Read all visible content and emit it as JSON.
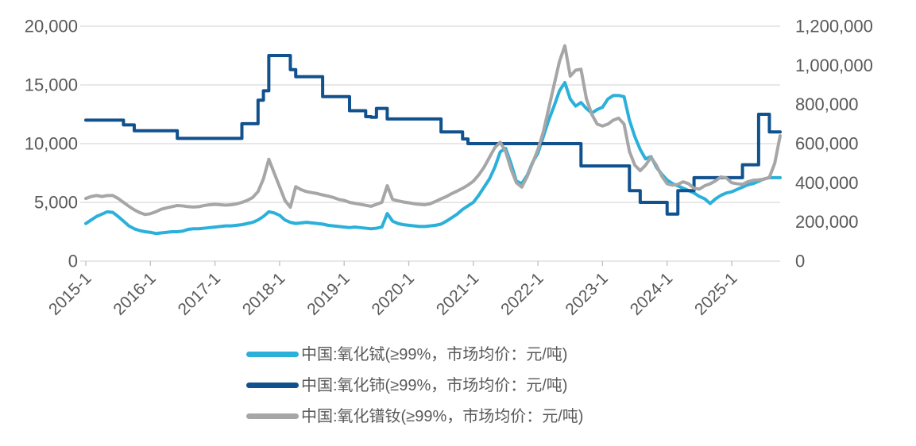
{
  "page": {
    "background": "#FFFFFF"
  },
  "styles": {
    "tick_text_color": "#595959",
    "legend_text_color": "#595959",
    "gridline_color": "#D9D9D9",
    "tick_mark_color": "#BFBFBF"
  },
  "chart_data": {
    "type": "line",
    "title": "",
    "grid": {
      "horizontal": true,
      "vertical": false
    },
    "legend_position": "bottom-left",
    "x_start": "2015-01",
    "x_interval": "month",
    "n_points": 130,
    "x_axis": {
      "rotation_deg": -45,
      "tick_labels": [
        "2015-1",
        "2016-1",
        "2017-1",
        "2018-1",
        "2019-1",
        "2020-1",
        "2021-1",
        "2022-1",
        "2023-1",
        "2024-1",
        "2025-1"
      ],
      "tick_month_indices": [
        0,
        12,
        24,
        36,
        48,
        60,
        72,
        84,
        96,
        108,
        120
      ]
    },
    "left_axis": {
      "min": 0,
      "max": 20000,
      "tick_values": [
        0,
        5000,
        10000,
        15000,
        20000
      ],
      "tick_labels": [
        "0",
        "5,000",
        "10,000",
        "15,000",
        "20,000"
      ]
    },
    "right_axis": {
      "min": 0,
      "max": 1200000,
      "tick_values": [
        0,
        200000,
        400000,
        600000,
        800000,
        1000000,
        1200000
      ],
      "tick_labels": [
        "0",
        "200,000",
        "400,000",
        "600,000",
        "800,000",
        "1,000,000",
        "1,200,000"
      ]
    },
    "series": [
      {
        "name": "中国:氧化铽(≥99%，市场均价：元/吨)",
        "color": "#2BB0DA",
        "axis": "left",
        "interpolation": "linear",
        "values": [
          3200,
          3500,
          3800,
          4000,
          4200,
          4150,
          3800,
          3400,
          3000,
          2750,
          2600,
          2500,
          2450,
          2350,
          2400,
          2450,
          2500,
          2500,
          2550,
          2700,
          2750,
          2750,
          2800,
          2850,
          2900,
          2950,
          3000,
          3000,
          3050,
          3100,
          3200,
          3300,
          3500,
          3800,
          4200,
          4100,
          3900,
          3500,
          3300,
          3200,
          3250,
          3300,
          3250,
          3200,
          3150,
          3050,
          3000,
          2950,
          2900,
          2850,
          2900,
          2850,
          2800,
          2750,
          2800,
          2900,
          4050,
          3400,
          3200,
          3100,
          3050,
          3000,
          2950,
          2950,
          3000,
          3050,
          3150,
          3400,
          3700,
          4000,
          4400,
          4700,
          5000,
          5600,
          6300,
          7000,
          8000,
          9300,
          9600,
          8300,
          6800,
          6600,
          7300,
          8400,
          9200,
          10600,
          12000,
          13200,
          14500,
          15200,
          13800,
          13200,
          13500,
          13000,
          12600,
          12900,
          13100,
          13800,
          14100,
          14100,
          14000,
          12000,
          10600,
          9500,
          8700,
          8900,
          8000,
          7400,
          6900,
          6600,
          6400,
          6200,
          6000,
          5800,
          5500,
          5300,
          4900,
          5300,
          5600,
          5800,
          5900,
          6100,
          6300,
          6500,
          6600,
          6800,
          7000,
          7100,
          7100,
          7100
        ]
      },
      {
        "name": "中国:氧化铈(≥99%，市场均价：元/吨)",
        "color": "#10518E",
        "axis": "left",
        "interpolation": "step",
        "values": [
          12000,
          12000,
          12000,
          12000,
          12000,
          12000,
          12000,
          11600,
          11600,
          11100,
          11100,
          11100,
          11100,
          11100,
          11100,
          11100,
          11100,
          10450,
          10450,
          10450,
          10450,
          10450,
          10450,
          10450,
          10450,
          10450,
          10450,
          10450,
          10450,
          11700,
          11700,
          11700,
          13700,
          14500,
          17500,
          17500,
          17500,
          17500,
          16300,
          15700,
          15700,
          15700,
          15700,
          15700,
          14000,
          14000,
          14000,
          14000,
          14000,
          12800,
          12800,
          12800,
          12300,
          12250,
          13000,
          13000,
          12100,
          12100,
          12100,
          12100,
          12100,
          12100,
          12100,
          12100,
          12100,
          12100,
          11000,
          11000,
          11000,
          11000,
          10400,
          10000,
          10000,
          10000,
          10000,
          10000,
          10000,
          10000,
          10000,
          10000,
          10000,
          10000,
          10000,
          10000,
          10000,
          10000,
          10000,
          10000,
          10000,
          10000,
          10000,
          10000,
          8100,
          8100,
          8100,
          8100,
          8100,
          8100,
          8100,
          8100,
          8100,
          6000,
          6000,
          5000,
          5000,
          5000,
          5000,
          5000,
          4000,
          4000,
          6000,
          6000,
          6000,
          7100,
          7100,
          7100,
          7100,
          7100,
          7100,
          7100,
          7100,
          7100,
          8200,
          8200,
          8200,
          12500,
          12500,
          11000,
          11000,
          11000
        ]
      },
      {
        "name": "中国:氧化镨钕(≥99%，市场均价：元/吨)",
        "color": "#A6A6A6",
        "axis": "right",
        "interpolation": "linear",
        "values": [
          320000,
          330000,
          335000,
          330000,
          335000,
          335000,
          320000,
          300000,
          280000,
          262000,
          248000,
          238000,
          242000,
          252000,
          265000,
          272000,
          278000,
          284000,
          282000,
          278000,
          276000,
          278000,
          284000,
          288000,
          290000,
          288000,
          286000,
          288000,
          292000,
          300000,
          310000,
          325000,
          355000,
          420000,
          520000,
          450000,
          380000,
          310000,
          275000,
          380000,
          365000,
          355000,
          350000,
          345000,
          338000,
          332000,
          325000,
          315000,
          310000,
          300000,
          295000,
          290000,
          285000,
          280000,
          290000,
          300000,
          385000,
          315000,
          308000,
          302000,
          298000,
          293000,
          290000,
          288000,
          293000,
          305000,
          318000,
          330000,
          345000,
          358000,
          372000,
          388000,
          408000,
          440000,
          480000,
          530000,
          580000,
          607000,
          560000,
          470000,
          400000,
          378000,
          432000,
          500000,
          570000,
          660000,
          780000,
          900000,
          1020000,
          1100000,
          945000,
          975000,
          980000,
          830000,
          750000,
          700000,
          690000,
          700000,
          720000,
          730000,
          700000,
          560000,
          490000,
          462000,
          490000,
          530000,
          490000,
          435000,
          395000,
          388000,
          392000,
          405000,
          395000,
          372000,
          368000,
          385000,
          395000,
          410000,
          430000,
          425000,
          400000,
          395000,
          392000,
          405000,
          413000,
          415000,
          418000,
          428000,
          500000,
          640000
        ]
      }
    ]
  }
}
